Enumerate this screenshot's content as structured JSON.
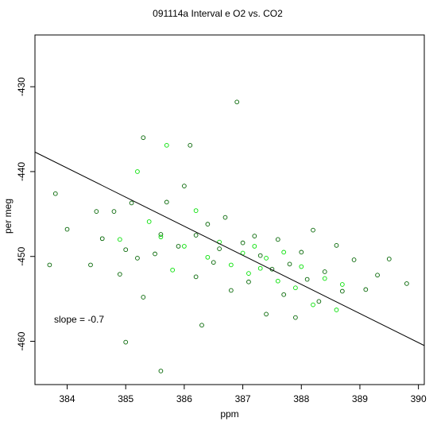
{
  "chart_data": {
    "type": "scatter",
    "title": "091114a   Interval e O2 vs. CO2",
    "xlabel": "ppm",
    "ylabel": "per meg",
    "xlim": [
      383.45,
      390.1
    ],
    "ylim": [
      -465.1,
      -423.9
    ],
    "x_ticks": [
      384,
      385,
      386,
      387,
      388,
      389,
      390
    ],
    "y_ticks": [
      -430,
      -440,
      -450,
      -460
    ],
    "grid": false,
    "series": [
      {
        "marker": "open-circle",
        "color": "#006400",
        "points": [
          [
            383.7,
            -451.0
          ],
          [
            383.8,
            -442.6
          ],
          [
            384.0,
            -446.8
          ],
          [
            384.4,
            -451.0
          ],
          [
            384.5,
            -444.7
          ],
          [
            384.6,
            -447.9
          ],
          [
            384.8,
            -444.7
          ],
          [
            384.9,
            -452.1
          ],
          [
            385.0,
            -460.1
          ],
          [
            385.0,
            -449.2
          ],
          [
            385.1,
            -443.7
          ],
          [
            385.2,
            -450.2
          ],
          [
            385.3,
            -436.0
          ],
          [
            385.3,
            -454.8
          ],
          [
            385.5,
            -449.7
          ],
          [
            385.6,
            -447.4
          ],
          [
            385.6,
            -463.5
          ],
          [
            385.7,
            -443.6
          ],
          [
            385.9,
            -448.8
          ],
          [
            386.0,
            -441.7
          ],
          [
            386.1,
            -436.9
          ],
          [
            386.2,
            -447.5
          ],
          [
            386.2,
            -452.4
          ],
          [
            386.3,
            -458.1
          ],
          [
            386.4,
            -446.2
          ],
          [
            386.5,
            -450.7
          ],
          [
            386.6,
            -449.1
          ],
          [
            386.7,
            -445.4
          ],
          [
            386.8,
            -454.0
          ],
          [
            386.9,
            -431.8
          ],
          [
            387.0,
            -448.4
          ],
          [
            387.1,
            -453.0
          ],
          [
            387.2,
            -447.6
          ],
          [
            387.3,
            -449.9
          ],
          [
            387.4,
            -456.8
          ],
          [
            387.5,
            -451.5
          ],
          [
            387.6,
            -448.0
          ],
          [
            387.7,
            -454.5
          ],
          [
            387.8,
            -450.9
          ],
          [
            387.9,
            -457.2
          ],
          [
            388.0,
            -449.5
          ],
          [
            388.1,
            -452.7
          ],
          [
            388.2,
            -446.9
          ],
          [
            388.3,
            -455.3
          ],
          [
            388.4,
            -451.8
          ],
          [
            388.6,
            -448.7
          ],
          [
            388.7,
            -454.1
          ],
          [
            388.9,
            -450.4
          ],
          [
            389.1,
            -453.9
          ],
          [
            389.3,
            -452.2
          ],
          [
            389.5,
            -450.3
          ],
          [
            389.8,
            -453.2
          ]
        ]
      },
      {
        "marker": "open-circle",
        "color": "#00e000",
        "points": [
          [
            384.9,
            -448.0
          ],
          [
            385.2,
            -440.0
          ],
          [
            385.4,
            -445.9
          ],
          [
            385.6,
            -447.7
          ],
          [
            385.7,
            -436.9
          ],
          [
            385.8,
            -451.6
          ],
          [
            386.0,
            -448.8
          ],
          [
            386.2,
            -444.6
          ],
          [
            386.4,
            -450.1
          ],
          [
            386.6,
            -448.3
          ],
          [
            386.8,
            -451.0
          ],
          [
            387.0,
            -449.6
          ],
          [
            387.1,
            -452.0
          ],
          [
            387.2,
            -448.8
          ],
          [
            387.3,
            -451.4
          ],
          [
            387.4,
            -450.2
          ],
          [
            387.6,
            -452.9
          ],
          [
            387.7,
            -449.5
          ],
          [
            387.9,
            -453.7
          ],
          [
            388.0,
            -451.2
          ],
          [
            388.2,
            -455.7
          ],
          [
            388.4,
            -452.6
          ],
          [
            388.6,
            -456.3
          ],
          [
            388.7,
            -453.3
          ]
        ]
      }
    ],
    "fit_line": {
      "slope": -0.7,
      "x": [
        383.45,
        390.1
      ],
      "y": [
        -437.7,
        -460.5
      ]
    },
    "annotation": "slope =  -0.7"
  }
}
